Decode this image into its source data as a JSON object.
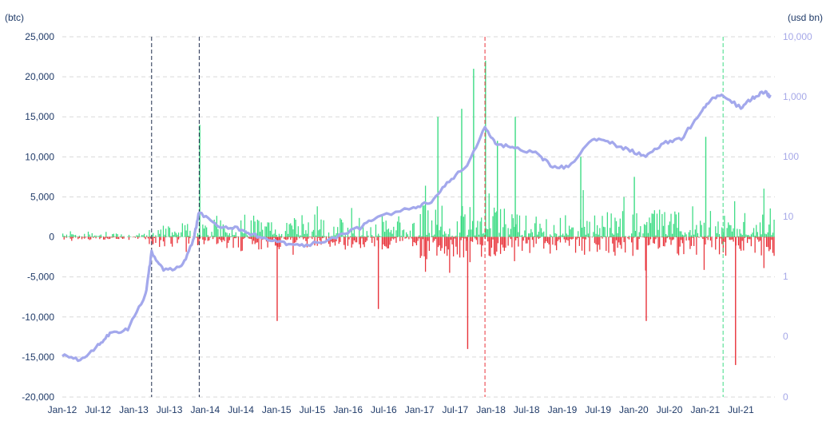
{
  "chart_data": {
    "type": "bar",
    "left_axis_label": "(btc)",
    "right_axis_label": "(usd bn)",
    "left_ylim": [
      -20000,
      25000
    ],
    "left_ticks": [
      "25,000",
      "20,000",
      "15,000",
      "10,000",
      "5,000",
      "0",
      "-5,000",
      "-10,000",
      "-15,000",
      "-20,000"
    ],
    "right_scale": "log",
    "right_ticks": [
      "10,000",
      "1,000",
      "100",
      "10",
      "1",
      "0",
      "0"
    ],
    "x_ticks": [
      "Jan-12",
      "Jul-12",
      "Jan-13",
      "Jul-13",
      "Jan-14",
      "Jul-14",
      "Jan-15",
      "Jul-15",
      "Jan-16",
      "Jul-16",
      "Jan-17",
      "Jul-17",
      "Jan-18",
      "Jul-18",
      "Jan-19",
      "Jul-19",
      "Jan-20",
      "Jul-20",
      "Jan-21",
      "Jul-21"
    ],
    "grid": "horizontal dashed",
    "colors": {
      "inflow": "#3ddc84",
      "outflow": "#e8333a",
      "market_cap": "#a3a8ec",
      "axis_text": "#1f3a68",
      "right_axis_text": "#a6a8e8"
    },
    "vertical_markers": [
      {
        "date": "2013-04",
        "color": "#1f2d4d"
      },
      {
        "date": "2013-12",
        "color": "#1f2d4d"
      },
      {
        "date": "2017-12",
        "color": "#e8333a"
      },
      {
        "date": "2021-04",
        "color": "#3ddc84"
      }
    ],
    "bar_spikes": [
      {
        "date": "2013-12",
        "value": 14000
      },
      {
        "date": "2017-04",
        "value": 15000
      },
      {
        "date": "2017-08",
        "value": 16000
      },
      {
        "date": "2017-09",
        "value": -14000
      },
      {
        "date": "2017-10",
        "value": 21000
      },
      {
        "date": "2017-12",
        "value": 22000
      },
      {
        "date": "2018-02",
        "value": 12000
      },
      {
        "date": "2018-05",
        "value": 15000
      },
      {
        "date": "2020-03",
        "value": -10500
      },
      {
        "date": "2021-06",
        "value": -16000
      },
      {
        "date": "2015-01",
        "value": -10500
      },
      {
        "date": "2016-06",
        "value": -9000
      },
      {
        "date": "2019-04",
        "value": 10000
      },
      {
        "date": "2020-01",
        "value": 7500
      },
      {
        "date": "2021-01",
        "value": 12500
      }
    ],
    "series": [
      {
        "type": "bar",
        "name": "",
        "values": []
      },
      {
        "type": "line",
        "name": "",
        "axis": "right",
        "points": [
          [
            "2012-01",
            0.05
          ],
          [
            "2012-04",
            0.04
          ],
          [
            "2012-07",
            0.07
          ],
          [
            "2012-09",
            0.11
          ],
          [
            "2012-12",
            0.13
          ],
          [
            "2013-03",
            0.5
          ],
          [
            "2013-04",
            2.5
          ],
          [
            "2013-06",
            1.3
          ],
          [
            "2013-09",
            1.4
          ],
          [
            "2013-11",
            4
          ],
          [
            "2013-12",
            12
          ],
          [
            "2014-03",
            7
          ],
          [
            "2014-06",
            6.5
          ],
          [
            "2014-09",
            5
          ],
          [
            "2014-12",
            4
          ],
          [
            "2015-03",
            3.5
          ],
          [
            "2015-06",
            3.3
          ],
          [
            "2015-11",
            4.5
          ],
          [
            "2016-03",
            6.5
          ],
          [
            "2016-06",
            10
          ],
          [
            "2016-12",
            14
          ],
          [
            "2017-03",
            18
          ],
          [
            "2017-06",
            40
          ],
          [
            "2017-09",
            70
          ],
          [
            "2017-12",
            300
          ],
          [
            "2018-02",
            160
          ],
          [
            "2018-05",
            140
          ],
          [
            "2018-09",
            110
          ],
          [
            "2018-11",
            70
          ],
          [
            "2019-02",
            65
          ],
          [
            "2019-06",
            200
          ],
          [
            "2019-09",
            170
          ],
          [
            "2019-12",
            130
          ],
          [
            "2020-03",
            100
          ],
          [
            "2020-06",
            170
          ],
          [
            "2020-09",
            200
          ],
          [
            "2020-12",
            500
          ],
          [
            "2021-02",
            900
          ],
          [
            "2021-04",
            1050
          ],
          [
            "2021-07",
            650
          ],
          [
            "2021-09",
            950
          ],
          [
            "2021-11",
            1200
          ],
          [
            "2021-12",
            1000
          ]
        ]
      }
    ]
  }
}
